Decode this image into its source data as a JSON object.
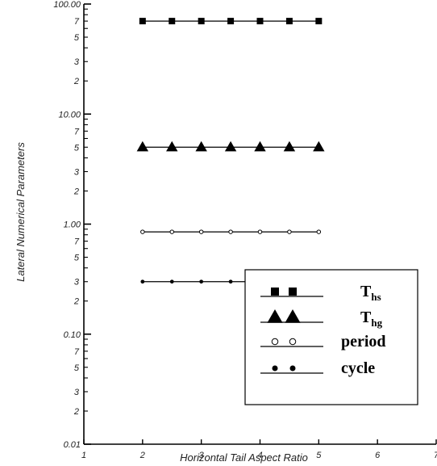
{
  "chart_data": {
    "type": "line",
    "xlabel": "Horizontal Tail Aspect Ratio",
    "ylabel": "Lateral Numerical Parameters",
    "y_scale": "log",
    "xlim": [
      1,
      7
    ],
    "ylim": [
      0.01,
      100
    ],
    "x_ticks": [
      "1",
      "2",
      "3",
      "4",
      "5",
      "6",
      "7"
    ],
    "y_major_ticks": [
      "0.01",
      "0.10",
      "1.00",
      "10.00",
      "100.00"
    ],
    "y_minor_tick_labels": [
      "2",
      "3",
      "5",
      "7"
    ],
    "x": [
      2,
      2.5,
      3,
      3.5,
      4,
      4.5,
      5
    ],
    "series": [
      {
        "name": "Ths",
        "marker": "square",
        "values": [
          70,
          70,
          70,
          70,
          70,
          70,
          70
        ]
      },
      {
        "name": "Thg",
        "marker": "triangle",
        "values": [
          5,
          5,
          5,
          5,
          5,
          5,
          5
        ]
      },
      {
        "name": "period",
        "marker": "open-circle",
        "values": [
          0.85,
          0.85,
          0.85,
          0.85,
          0.85,
          0.85,
          0.85
        ]
      },
      {
        "name": "cycle",
        "marker": "filled-circle",
        "values": [
          0.3,
          0.3,
          0.3,
          0.3,
          0.3,
          0.3,
          0.3
        ]
      }
    ],
    "legend": {
      "placement": "bottom-right",
      "entries": [
        {
          "main": "T",
          "sub": "hs",
          "marker": "square"
        },
        {
          "main": "T",
          "sub": "hg",
          "marker": "triangle"
        },
        {
          "main": "period",
          "sub": "",
          "marker": "open-circle"
        },
        {
          "main": "cycle",
          "sub": "",
          "marker": "filled-circle"
        }
      ]
    },
    "grid": false
  }
}
